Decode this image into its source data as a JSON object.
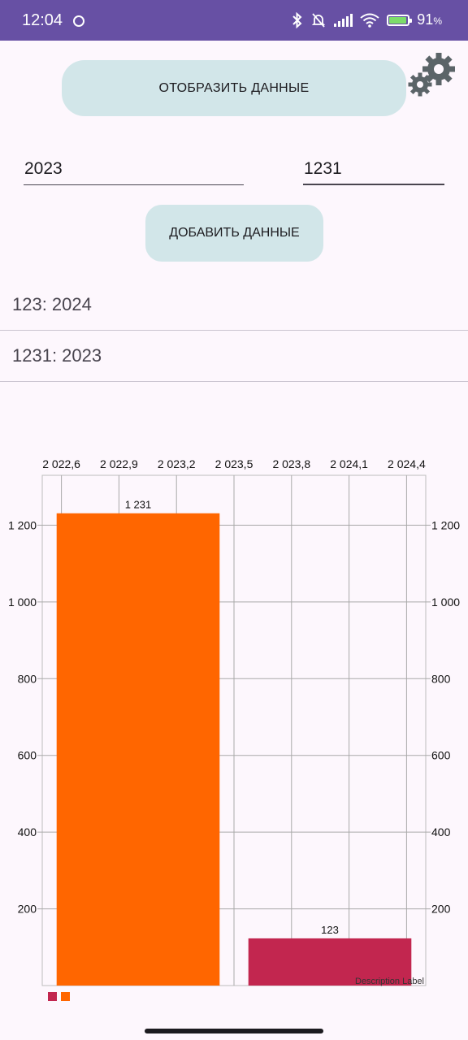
{
  "status_bar": {
    "time": "12:04",
    "battery_percent": "91",
    "battery_unit": "%",
    "icons": [
      "face-icon",
      "bluetooth-icon",
      "mute-icon",
      "signal-icon",
      "wifi-icon",
      "battery-charging-icon"
    ]
  },
  "actions": {
    "show_data_label": "ОТОБРАЗИТЬ ДАННЫЕ",
    "add_data_label": "ДОБАВИТЬ ДАННЫЕ",
    "settings_icon": "gear-icon"
  },
  "form": {
    "year_value": "2023",
    "amount_value": "1231"
  },
  "list": {
    "items": [
      {
        "text": "123: 2024"
      },
      {
        "text": "1231: 2023"
      }
    ]
  },
  "chart_data": {
    "type": "bar",
    "x_tick_labels": [
      "2 022,6",
      "2 022,9",
      "2 023,2",
      "2 023,5",
      "2 023,8",
      "2 024,1",
      "2 024,4"
    ],
    "x_ticks": [
      2022.6,
      2022.9,
      2023.2,
      2023.5,
      2023.8,
      2024.1,
      2024.4
    ],
    "y_tick_labels": [
      "200",
      "400",
      "600",
      "800",
      "1 000",
      "1 200"
    ],
    "y_ticks": [
      200,
      400,
      600,
      800,
      1000,
      1200
    ],
    "bars": [
      {
        "x": 2023,
        "value": 1231,
        "label": "1 231",
        "color": "#ff6600"
      },
      {
        "x": 2024,
        "value": 123,
        "label": "123",
        "color": "#c2264f"
      }
    ],
    "xlim": [
      2022.5,
      2024.5
    ],
    "ylim": [
      0,
      1330
    ],
    "grid": true,
    "description_label": "Description Label",
    "legend_colors": [
      "#c2264f",
      "#ff6600"
    ],
    "legend_placement": "bottom-left"
  }
}
